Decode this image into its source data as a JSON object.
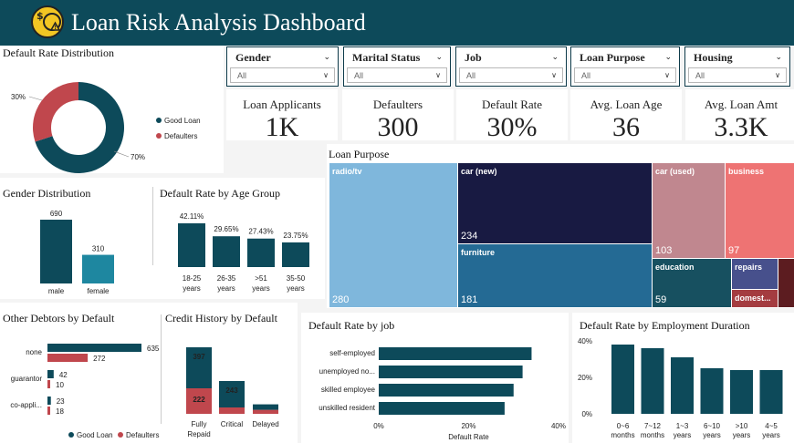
{
  "title": "Loan Risk Analysis Dashboard",
  "colors": {
    "header": "#0d4a5a",
    "good": "#0d4a5a",
    "bad": "#c0474d",
    "teal": "#1e87a0"
  },
  "slicers": [
    {
      "label": "Gender",
      "value": "All"
    },
    {
      "label": "Marital Status",
      "value": "All"
    },
    {
      "label": "Job",
      "value": "All"
    },
    {
      "label": "Loan Purpose",
      "value": "All"
    },
    {
      "label": "Housing",
      "value": "All"
    }
  ],
  "kpis": [
    {
      "label": "Loan Applicants",
      "value": "1K"
    },
    {
      "label": "Defaulters",
      "value": "300"
    },
    {
      "label": "Default Rate",
      "value": "30%"
    },
    {
      "label": "Avg. Loan Age",
      "value": "36"
    },
    {
      "label": "Avg. Loan Amt",
      "value": "3.3K"
    }
  ],
  "panels": {
    "default_dist": "Default Rate Distribution",
    "gender": "Gender Distribution",
    "age_group": "Default Rate by Age Group",
    "loan_purpose": "Loan Purpose",
    "other_debtors": "Other Debtors by Default",
    "credit_history": "Credit History by Default",
    "job": "Default Rate by job",
    "employment": "Default Rate by Employment Duration"
  },
  "chart_data": [
    {
      "id": "donut",
      "type": "pie",
      "title": "Default Rate Distribution",
      "categories": [
        "Good Loan",
        "Defaulters"
      ],
      "values": [
        70,
        30
      ],
      "labels": [
        "70%",
        "30%"
      ],
      "legend": [
        "Good Loan",
        "Defaulters"
      ],
      "legend_position": "right"
    },
    {
      "id": "gender",
      "type": "bar",
      "title": "Gender Distribution",
      "categories": [
        "male",
        "female"
      ],
      "values": [
        690,
        310
      ],
      "labels": [
        "690",
        "310"
      ]
    },
    {
      "id": "age",
      "type": "bar",
      "title": "Default Rate by Age Group",
      "categories": [
        "18-25 years",
        "26-35 years",
        ">51 years",
        "35-50 years"
      ],
      "cat_lines": [
        [
          "18-25",
          "years"
        ],
        [
          "26-35",
          "years"
        ],
        [
          ">51",
          "years"
        ],
        [
          "35-50",
          "years"
        ]
      ],
      "values": [
        42.11,
        29.65,
        27.43,
        23.75
      ],
      "labels": [
        "42.11%",
        "29.65%",
        "27.43%",
        "23.75%"
      ]
    },
    {
      "id": "treemap",
      "type": "treemap",
      "title": "Loan Purpose",
      "items": [
        {
          "name": "radio/tv",
          "value": 280
        },
        {
          "name": "car (new)",
          "value": 234
        },
        {
          "name": "furniture",
          "value": 181
        },
        {
          "name": "car (used)",
          "value": 103
        },
        {
          "name": "business",
          "value": 97
        },
        {
          "name": "education",
          "value": 59
        },
        {
          "name": "repairs",
          "value": ""
        },
        {
          "name": "domest...",
          "value": ""
        }
      ]
    },
    {
      "id": "debtors",
      "type": "bar",
      "title": "Other Debtors by Default",
      "categories": [
        "none",
        "guarantor",
        "co-appli..."
      ],
      "series": [
        {
          "name": "Good Loan",
          "values": [
            635,
            42,
            23
          ]
        },
        {
          "name": "Defaulters",
          "values": [
            272,
            10,
            18
          ]
        }
      ],
      "legend": [
        "Good Loan",
        "Defaulters"
      ]
    },
    {
      "id": "credit",
      "type": "bar",
      "title": "Credit History by Default",
      "categories": [
        "Fully Repaid",
        "Critical",
        "Delayed"
      ],
      "cat_lines": [
        [
          "Fully",
          "Repaid"
        ],
        [
          "Critical"
        ],
        [
          "Delayed"
        ]
      ],
      "series": [
        {
          "name": "Good Loan",
          "values": [
            397,
            243,
            null
          ]
        },
        {
          "name": "Defaulters",
          "values": [
            222,
            null,
            null
          ]
        }
      ],
      "labels": {
        "good": [
          "397",
          "243",
          ""
        ],
        "bad": [
          "222",
          "",
          ""
        ]
      },
      "approx_good": [
        397,
        243,
        28
      ],
      "approx_bad": [
        222,
        30,
        18
      ]
    },
    {
      "id": "job",
      "type": "bar",
      "title": "Default Rate by job",
      "categories": [
        "self-employed",
        "unemployed no...",
        "skilled employee",
        "unskilled resident"
      ],
      "values": [
        34,
        32,
        30,
        28
      ],
      "xlabel": "Default Rate",
      "ticks": [
        "0%",
        "20%",
        "40%"
      ],
      "xlim": [
        0,
        40
      ]
    },
    {
      "id": "employment",
      "type": "bar",
      "title": "Default Rate by Employment Duration",
      "categories": [
        "0-6 months",
        "7-12 months",
        "1-3 years",
        "6-10 years",
        ">10 years",
        "4-5 years"
      ],
      "cat_lines": [
        [
          "0~6",
          "months"
        ],
        [
          "7~12",
          "months"
        ],
        [
          "1~3",
          "years"
        ],
        [
          "6~10",
          "years"
        ],
        [
          ">10",
          "years"
        ],
        [
          "4~5",
          "years"
        ]
      ],
      "values": [
        38,
        36,
        31,
        25,
        24,
        24
      ],
      "ticks": [
        "0%",
        "20%",
        "40%"
      ],
      "ylim": [
        0,
        40
      ]
    }
  ]
}
